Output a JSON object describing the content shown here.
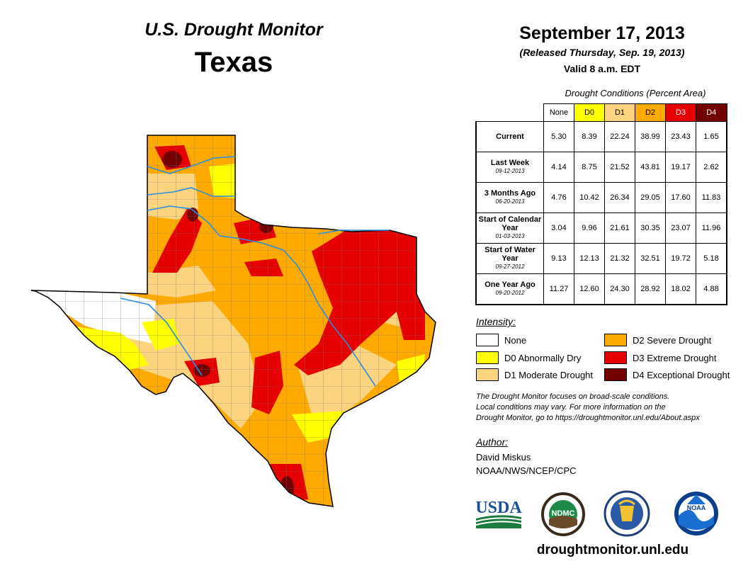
{
  "header": {
    "brand": "U.S. Drought Monitor",
    "state": "Texas",
    "date": "September 17, 2013",
    "released": "(Released Thursday, Sep. 19, 2013)",
    "valid": "Valid 8 a.m. EDT"
  },
  "table": {
    "caption": "Drought Conditions (Percent Area)",
    "columns": [
      "None",
      "D0",
      "D1",
      "D2",
      "D3",
      "D4"
    ],
    "column_colors": [
      "#ffffff",
      "#ffff00",
      "#fcd37f",
      "#ffaa00",
      "#e60000",
      "#730000"
    ],
    "rows": [
      {
        "label": "Current",
        "sub": "",
        "values": [
          "5.30",
          "8.39",
          "22.24",
          "38.99",
          "23.43",
          "1.65"
        ]
      },
      {
        "label": "Last Week",
        "sub": "09-12-2013",
        "values": [
          "4.14",
          "8.75",
          "21.52",
          "43.81",
          "19.17",
          "2.62"
        ]
      },
      {
        "label": "3 Months Ago",
        "sub": "06-20-2013",
        "values": [
          "4.76",
          "10.42",
          "26.34",
          "29.05",
          "17.60",
          "11.83"
        ]
      },
      {
        "label": "Start of Calendar Year",
        "sub": "01-03-2013",
        "values": [
          "3.04",
          "9.96",
          "21.61",
          "30.35",
          "23.07",
          "11.96"
        ]
      },
      {
        "label": "Start of Water Year",
        "sub": "09-27-2012",
        "values": [
          "9.13",
          "12.13",
          "21.32",
          "32.51",
          "19.72",
          "5.18"
        ]
      },
      {
        "label": "One Year Ago",
        "sub": "09-20-2012",
        "values": [
          "11.27",
          "12.60",
          "24.30",
          "28.92",
          "18.02",
          "4.88"
        ]
      }
    ]
  },
  "legend": {
    "title": "Intensity:",
    "items": [
      {
        "label": "None",
        "color": "#ffffff"
      },
      {
        "label": "D0 Abnormally Dry",
        "color": "#ffff00"
      },
      {
        "label": "D1 Moderate Drought",
        "color": "#fcd37f"
      },
      {
        "label": "D2 Severe Drought",
        "color": "#ffaa00"
      },
      {
        "label": "D3 Extreme Drought",
        "color": "#e60000"
      },
      {
        "label": "D4 Exceptional Drought",
        "color": "#730000"
      }
    ]
  },
  "note": {
    "line1": "The Drought Monitor focuses on broad-scale conditions.",
    "line2": "Local conditions may vary. For more information on the",
    "line3": "Drought Monitor, go to https://droughtmonitor.unl.edu/About.aspx"
  },
  "author": {
    "label": "Author:",
    "name": "David Miskus",
    "org": "NOAA/NWS/NCEP/CPC"
  },
  "logos": {
    "usda": "USDA",
    "ndmc": "NDMC",
    "noaa": "NOAA"
  },
  "website": "droughtmonitor.unl.edu"
}
